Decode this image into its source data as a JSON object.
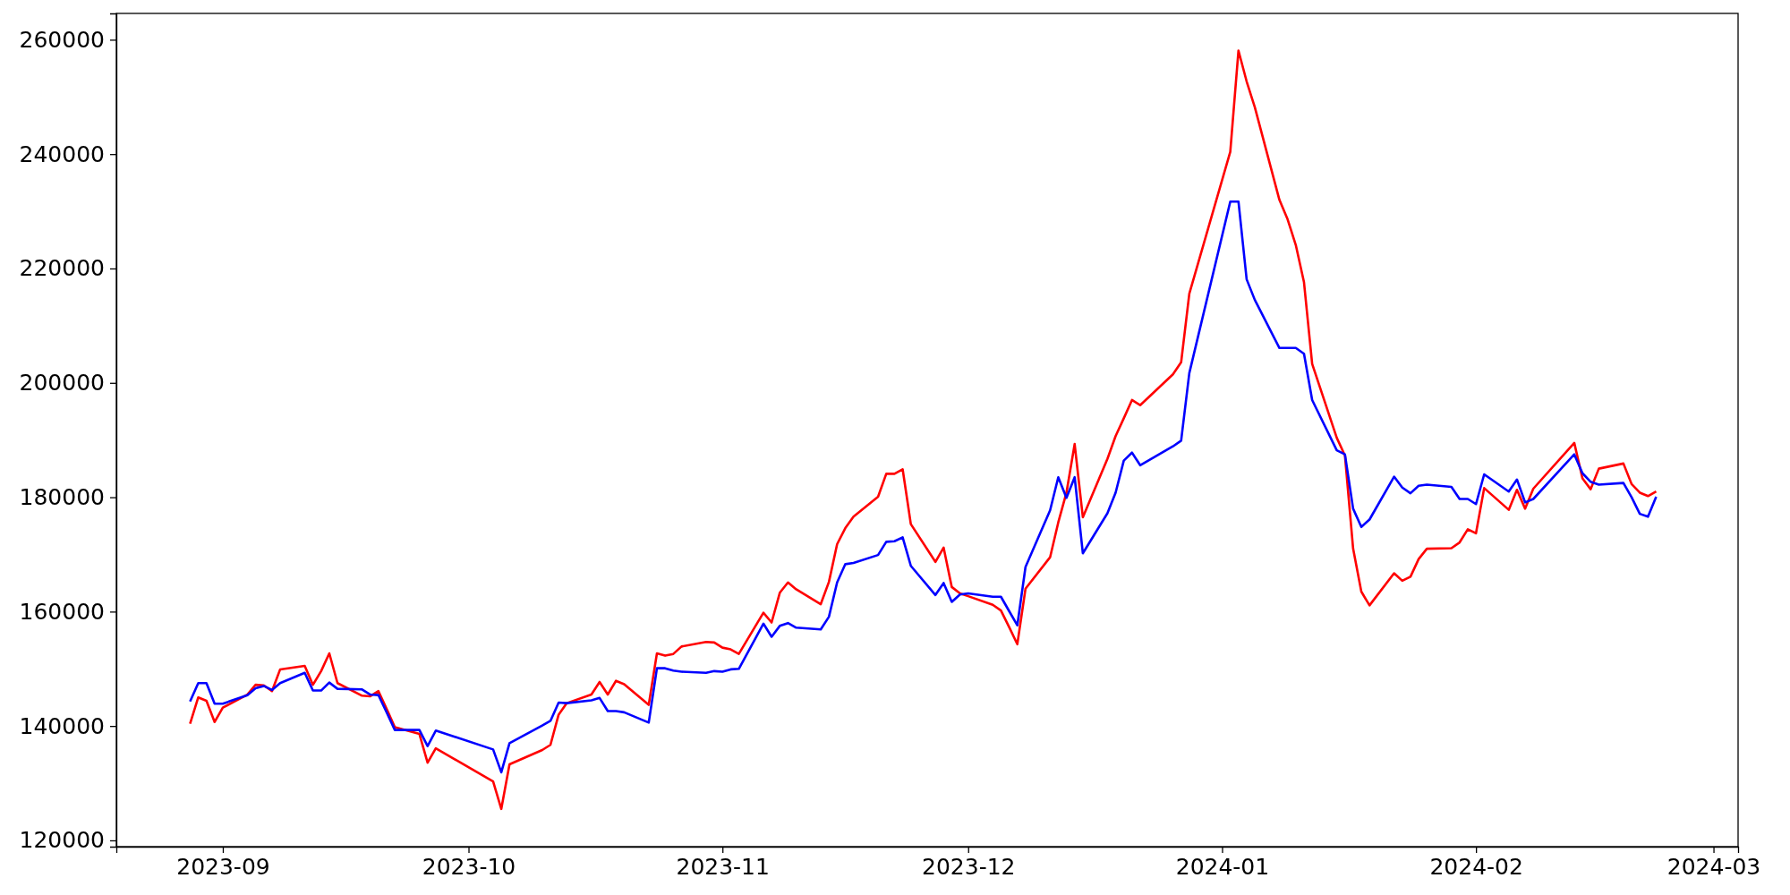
{
  "chart_data": {
    "type": "line",
    "x": [
      "2023-08-28",
      "2023-08-29",
      "2023-08-30",
      "2023-08-31",
      "2023-09-01",
      "2023-09-04",
      "2023-09-05",
      "2023-09-06",
      "2023-09-07",
      "2023-09-08",
      "2023-09-11",
      "2023-09-12",
      "2023-09-13",
      "2023-09-14",
      "2023-09-15",
      "2023-09-18",
      "2023-09-19",
      "2023-09-20",
      "2023-09-21",
      "2023-09-22",
      "2023-09-25",
      "2023-09-26",
      "2023-09-27",
      "2023-10-04",
      "2023-10-05",
      "2023-10-06",
      "2023-10-10",
      "2023-10-11",
      "2023-10-12",
      "2023-10-13",
      "2023-10-16",
      "2023-10-17",
      "2023-10-18",
      "2023-10-19",
      "2023-10-20",
      "2023-10-23",
      "2023-10-24",
      "2023-10-25",
      "2023-10-26",
      "2023-10-27",
      "2023-10-30",
      "2023-10-31",
      "2023-11-01",
      "2023-11-02",
      "2023-11-03",
      "2023-11-06",
      "2023-11-07",
      "2023-11-08",
      "2023-11-09",
      "2023-11-10",
      "2023-11-13",
      "2023-11-14",
      "2023-11-15",
      "2023-11-16",
      "2023-11-17",
      "2023-11-20",
      "2023-11-21",
      "2023-11-22",
      "2023-11-23",
      "2023-11-24",
      "2023-11-27",
      "2023-11-28",
      "2023-11-29",
      "2023-11-30",
      "2023-12-01",
      "2023-12-04",
      "2023-12-05",
      "2023-12-06",
      "2023-12-07",
      "2023-12-08",
      "2023-12-11",
      "2023-12-12",
      "2023-12-13",
      "2023-12-14",
      "2023-12-15",
      "2023-12-18",
      "2023-12-19",
      "2023-12-20",
      "2023-12-21",
      "2023-12-22",
      "2023-12-26",
      "2023-12-27",
      "2023-12-28",
      "2024-01-02",
      "2024-01-03",
      "2024-01-04",
      "2024-01-05",
      "2024-01-08",
      "2024-01-09",
      "2024-01-10",
      "2024-01-11",
      "2024-01-12",
      "2024-01-15",
      "2024-01-16",
      "2024-01-17",
      "2024-01-18",
      "2024-01-19",
      "2024-01-22",
      "2024-01-23",
      "2024-01-24",
      "2024-01-25",
      "2024-01-26",
      "2024-01-29",
      "2024-01-30",
      "2024-01-31",
      "2024-02-01",
      "2024-02-02",
      "2024-02-05",
      "2024-02-06",
      "2024-02-07",
      "2024-02-08",
      "2024-02-13",
      "2024-02-14",
      "2024-02-15",
      "2024-02-16",
      "2024-02-19",
      "2024-02-20",
      "2024-02-21",
      "2024-02-22",
      "2024-02-23"
    ],
    "series": [
      {
        "color": "#ff0000",
        "values": [
          140400,
          145000,
          144400,
          140700,
          143200,
          145500,
          147200,
          147100,
          146100,
          149900,
          150500,
          147200,
          149600,
          152700,
          147500,
          145300,
          145200,
          146100,
          143000,
          139800,
          138600,
          133600,
          136100,
          130300,
          125500,
          133300,
          135800,
          136700,
          142000,
          144000,
          145500,
          147700,
          145500,
          147900,
          147300,
          143700,
          152700,
          152300,
          152600,
          153900,
          154700,
          154600,
          153700,
          153400,
          152600,
          159800,
          158100,
          163300,
          165100,
          163900,
          161300,
          165200,
          171800,
          174600,
          176600,
          180100,
          184100,
          184100,
          184900,
          175300,
          168700,
          171200,
          164300,
          163200,
          162700,
          161200,
          160200,
          157300,
          154300,
          164000,
          169500,
          175600,
          180800,
          189300,
          176500,
          186700,
          190700,
          193800,
          197000,
          196100,
          201500,
          203600,
          215600,
          240400,
          258100,
          252700,
          248200,
          232000,
          228600,
          224100,
          217600,
          203300,
          190400,
          187300,
          171000,
          163500,
          161100,
          166700,
          165400,
          166100,
          169200,
          171000,
          171100,
          172100,
          174400,
          173700,
          181600,
          177800,
          181300,
          178000,
          181500,
          189500,
          183300,
          181400,
          185000,
          185900,
          182300,
          180800,
          180200,
          181000
        ]
      },
      {
        "color": "#0000ff",
        "values": [
          144300,
          147500,
          147500,
          143900,
          143900,
          145400,
          146600,
          147000,
          146300,
          147500,
          149300,
          146200,
          146200,
          147600,
          146500,
          146400,
          145500,
          145400,
          142400,
          139300,
          139300,
          136500,
          139200,
          135900,
          131900,
          137000,
          140100,
          140900,
          144100,
          144000,
          144500,
          144900,
          142600,
          142600,
          142400,
          140600,
          150100,
          150100,
          149700,
          149500,
          149300,
          149600,
          149500,
          149900,
          150000,
          157900,
          155600,
          157500,
          158000,
          157200,
          156900,
          159100,
          165100,
          168300,
          168500,
          169900,
          172200,
          172300,
          173000,
          168000,
          162900,
          165000,
          161700,
          163000,
          163200,
          162600,
          162600,
          160100,
          157600,
          167800,
          177700,
          183500,
          179900,
          183500,
          170200,
          177200,
          180800,
          186400,
          187800,
          185600,
          188900,
          189900,
          201700,
          231700,
          231700,
          218100,
          214500,
          206100,
          206100,
          206100,
          205100,
          197000,
          188200,
          187500,
          178000,
          174800,
          176100,
          183600,
          181700,
          180700,
          182000,
          182200,
          181800,
          179700,
          179700,
          178800,
          184000,
          181000,
          183100,
          179100,
          179700,
          187500,
          184200,
          182700,
          182200,
          182500,
          180000,
          177100,
          176600,
          180100
        ]
      }
    ],
    "xlim": [
      "2023-08-19",
      "2024-03-04"
    ],
    "ylim": [
      118900,
      264600
    ],
    "xticks": [
      {
        "value": "2023-09-01",
        "label": "2023-09"
      },
      {
        "value": "2023-10-01",
        "label": "2023-10"
      },
      {
        "value": "2023-11-01",
        "label": "2023-11"
      },
      {
        "value": "2023-12-01",
        "label": "2023-12"
      },
      {
        "value": "2024-01-01",
        "label": "2024-01"
      },
      {
        "value": "2024-02-01",
        "label": "2024-02"
      },
      {
        "value": "2024-03-01",
        "label": "2024-03"
      }
    ],
    "yticks": [
      120000,
      140000,
      160000,
      180000,
      200000,
      220000,
      240000,
      260000
    ]
  }
}
